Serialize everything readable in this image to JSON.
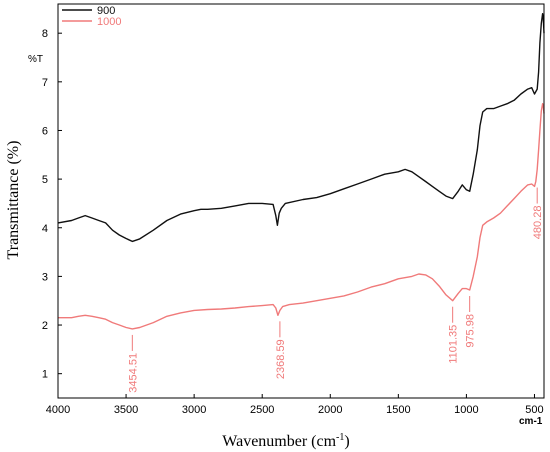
{
  "chart_data": {
    "type": "line",
    "xlabel": "Wavenumber (cm",
    "xlabel_sup": "-1",
    "xlabel_close": ")",
    "ylabel": "Transmittance (%)",
    "inner_ylabel": "%T",
    "x_unit_label": "cm-1",
    "xlim": [
      4000,
      430
    ],
    "ylim": [
      0.5,
      8.6
    ],
    "x_ticks": [
      4000,
      3500,
      3000,
      2500,
      2000,
      1500,
      1000,
      500
    ],
    "y_ticks": [
      1,
      2,
      3,
      4,
      5,
      6,
      7,
      8
    ],
    "legend_position": "top-left",
    "series": [
      {
        "name": "900",
        "color": "#111111",
        "points": [
          [
            4000,
            4.1
          ],
          [
            3900,
            4.15
          ],
          [
            3850,
            4.2
          ],
          [
            3800,
            4.25
          ],
          [
            3750,
            4.2
          ],
          [
            3700,
            4.15
          ],
          [
            3650,
            4.1
          ],
          [
            3600,
            3.95
          ],
          [
            3550,
            3.85
          ],
          [
            3500,
            3.78
          ],
          [
            3454,
            3.72
          ],
          [
            3400,
            3.77
          ],
          [
            3300,
            3.95
          ],
          [
            3200,
            4.15
          ],
          [
            3100,
            4.28
          ],
          [
            3000,
            4.35
          ],
          [
            2950,
            4.38
          ],
          [
            2900,
            4.38
          ],
          [
            2800,
            4.4
          ],
          [
            2700,
            4.45
          ],
          [
            2600,
            4.5
          ],
          [
            2500,
            4.5
          ],
          [
            2420,
            4.48
          ],
          [
            2400,
            4.25
          ],
          [
            2388,
            4.05
          ],
          [
            2375,
            4.3
          ],
          [
            2360,
            4.4
          ],
          [
            2330,
            4.5
          ],
          [
            2200,
            4.58
          ],
          [
            2100,
            4.62
          ],
          [
            2000,
            4.7
          ],
          [
            1900,
            4.8
          ],
          [
            1800,
            4.9
          ],
          [
            1700,
            5.0
          ],
          [
            1600,
            5.1
          ],
          [
            1500,
            5.15
          ],
          [
            1450,
            5.2
          ],
          [
            1400,
            5.15
          ],
          [
            1350,
            5.05
          ],
          [
            1300,
            4.95
          ],
          [
            1250,
            4.85
          ],
          [
            1200,
            4.75
          ],
          [
            1150,
            4.65
          ],
          [
            1101,
            4.6
          ],
          [
            1060,
            4.75
          ],
          [
            1030,
            4.88
          ],
          [
            1000,
            4.78
          ],
          [
            976,
            4.75
          ],
          [
            950,
            5.1
          ],
          [
            920,
            5.6
          ],
          [
            900,
            6.1
          ],
          [
            880,
            6.38
          ],
          [
            850,
            6.45
          ],
          [
            800,
            6.45
          ],
          [
            750,
            6.5
          ],
          [
            700,
            6.55
          ],
          [
            650,
            6.62
          ],
          [
            600,
            6.75
          ],
          [
            550,
            6.85
          ],
          [
            520,
            6.88
          ],
          [
            500,
            6.75
          ],
          [
            480,
            6.85
          ],
          [
            470,
            7.2
          ],
          [
            460,
            7.8
          ],
          [
            450,
            8.2
          ],
          [
            440,
            8.4
          ],
          [
            435,
            8.3
          ],
          [
            430,
            8.0
          ]
        ]
      },
      {
        "name": "1000",
        "color": "#f07a7a",
        "points": [
          [
            4000,
            2.15
          ],
          [
            3900,
            2.15
          ],
          [
            3850,
            2.18
          ],
          [
            3800,
            2.2
          ],
          [
            3750,
            2.18
          ],
          [
            3700,
            2.15
          ],
          [
            3650,
            2.12
          ],
          [
            3600,
            2.05
          ],
          [
            3550,
            2.0
          ],
          [
            3500,
            1.95
          ],
          [
            3454,
            1.92
          ],
          [
            3400,
            1.95
          ],
          [
            3300,
            2.05
          ],
          [
            3200,
            2.18
          ],
          [
            3100,
            2.25
          ],
          [
            3000,
            2.3
          ],
          [
            2900,
            2.32
          ],
          [
            2800,
            2.33
          ],
          [
            2700,
            2.35
          ],
          [
            2600,
            2.38
          ],
          [
            2500,
            2.4
          ],
          [
            2420,
            2.42
          ],
          [
            2400,
            2.35
          ],
          [
            2385,
            2.2
          ],
          [
            2370,
            2.3
          ],
          [
            2350,
            2.38
          ],
          [
            2300,
            2.42
          ],
          [
            2200,
            2.45
          ],
          [
            2100,
            2.5
          ],
          [
            2000,
            2.55
          ],
          [
            1900,
            2.6
          ],
          [
            1800,
            2.68
          ],
          [
            1700,
            2.78
          ],
          [
            1600,
            2.85
          ],
          [
            1500,
            2.95
          ],
          [
            1400,
            3.0
          ],
          [
            1350,
            3.05
          ],
          [
            1300,
            3.03
          ],
          [
            1250,
            2.95
          ],
          [
            1200,
            2.8
          ],
          [
            1150,
            2.62
          ],
          [
            1101,
            2.5
          ],
          [
            1060,
            2.65
          ],
          [
            1030,
            2.75
          ],
          [
            1000,
            2.75
          ],
          [
            976,
            2.72
          ],
          [
            950,
            3.0
          ],
          [
            920,
            3.4
          ],
          [
            900,
            3.8
          ],
          [
            880,
            4.05
          ],
          [
            850,
            4.12
          ],
          [
            800,
            4.2
          ],
          [
            750,
            4.3
          ],
          [
            700,
            4.45
          ],
          [
            650,
            4.6
          ],
          [
            600,
            4.75
          ],
          [
            550,
            4.88
          ],
          [
            520,
            4.9
          ],
          [
            500,
            4.85
          ],
          [
            490,
            4.95
          ],
          [
            480,
            5.2
          ],
          [
            470,
            5.6
          ],
          [
            460,
            6.0
          ],
          [
            450,
            6.4
          ],
          [
            440,
            6.55
          ],
          [
            435,
            6.5
          ],
          [
            430,
            6.35
          ]
        ]
      }
    ],
    "annotations": [
      {
        "label": "3454.51",
        "x": 3454,
        "y": 1.92
      },
      {
        "label": "2368.59",
        "x": 2370,
        "y": 2.2
      },
      {
        "label": "1101.35",
        "x": 1101,
        "y": 2.5
      },
      {
        "label": "975.98",
        "x": 976,
        "y": 2.72
      },
      {
        "label": "480.28",
        "x": 480,
        "y": 4.95
      }
    ],
    "annotation_color": "#f07a7a"
  }
}
